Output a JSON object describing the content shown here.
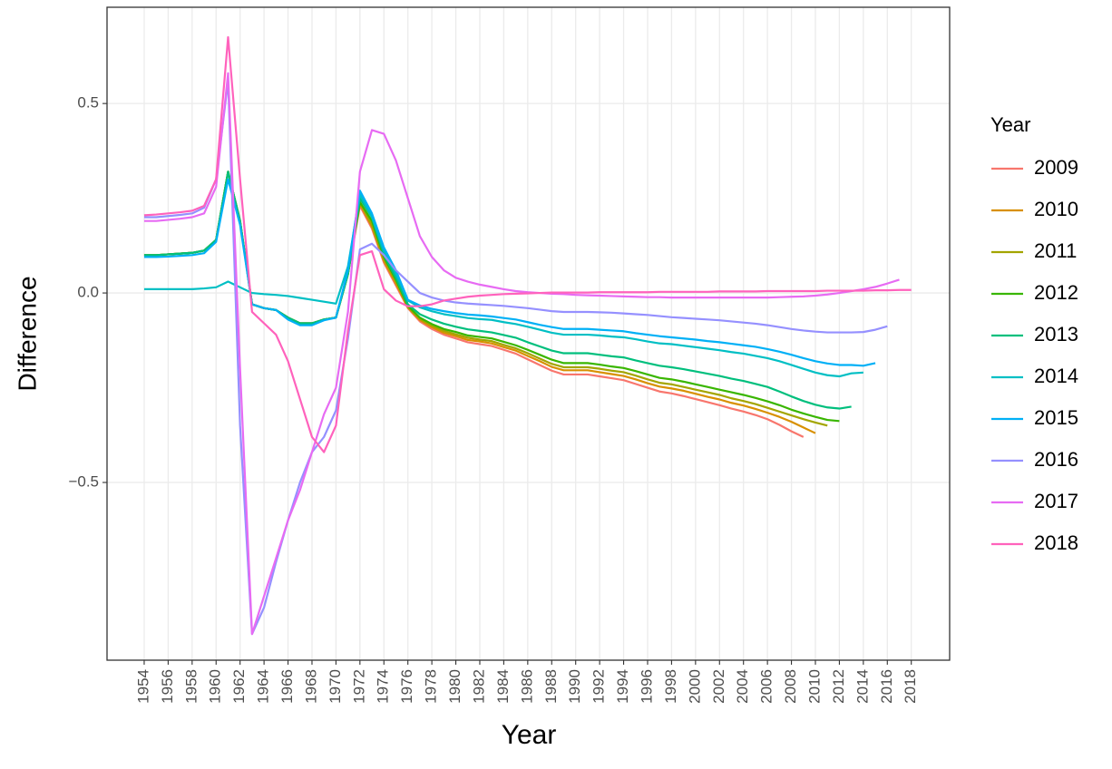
{
  "chart_data": {
    "type": "line",
    "x_label": "Year",
    "y_label": "Difference",
    "legend_title": "Year",
    "x": [
      1954,
      1955,
      1956,
      1957,
      1958,
      1959,
      1960,
      1961,
      1962,
      1963,
      1964,
      1965,
      1966,
      1967,
      1968,
      1969,
      1970,
      1971,
      1972,
      1973,
      1974,
      1975,
      1976,
      1977,
      1978,
      1979,
      1980,
      1981,
      1982,
      1983,
      1984,
      1985,
      1986,
      1987,
      1988,
      1989,
      1990,
      1991,
      1992,
      1993,
      1994,
      1995,
      1996,
      1997,
      1998,
      1999,
      2000,
      2001,
      2002,
      2003,
      2004,
      2005,
      2006,
      2007,
      2008,
      2009,
      2010,
      2011,
      2012,
      2013,
      2014,
      2015,
      2016,
      2017,
      2018
    ],
    "xlim": [
      1950.9,
      2021.2
    ],
    "xticks": [
      1954,
      1956,
      1958,
      1960,
      1962,
      1964,
      1966,
      1968,
      1970,
      1972,
      1974,
      1976,
      1978,
      1980,
      1982,
      1984,
      1986,
      1988,
      1990,
      1992,
      1994,
      1996,
      1998,
      2000,
      2002,
      2004,
      2006,
      2008,
      2010,
      2012,
      2014,
      2016,
      2018
    ],
    "ylim": [
      -0.969,
      0.754
    ],
    "yticks": [
      {
        "value": -0.5,
        "label": "−0.5"
      },
      {
        "value": 0,
        "label": "0.0"
      },
      {
        "value": 0.5,
        "label": "0.5"
      }
    ],
    "grid": true,
    "legend": "right",
    "series": [
      {
        "name": "2009",
        "color": "#F8766D",
        "values": [
          0.1,
          0.1,
          0.102,
          0.104,
          0.106,
          0.112,
          0.14,
          0.32,
          0.19,
          -0.03,
          -0.04,
          -0.045,
          -0.065,
          -0.08,
          -0.08,
          -0.07,
          -0.065,
          0.05,
          0.23,
          0.17,
          0.08,
          0.02,
          -0.04,
          -0.075,
          -0.095,
          -0.11,
          -0.12,
          -0.13,
          -0.135,
          -0.14,
          -0.15,
          -0.16,
          -0.175,
          -0.19,
          -0.205,
          -0.215,
          -0.215,
          -0.215,
          -0.22,
          -0.225,
          -0.23,
          -0.24,
          -0.25,
          -0.26,
          -0.265,
          -0.272,
          -0.28,
          -0.288,
          -0.296,
          -0.305,
          -0.313,
          -0.322,
          -0.333,
          -0.348,
          -0.365,
          -0.38,
          null,
          null,
          null,
          null,
          null,
          null,
          null,
          null,
          null
        ]
      },
      {
        "name": "2010",
        "color": "#D89000",
        "values": [
          0.1,
          0.1,
          0.102,
          0.104,
          0.106,
          0.112,
          0.14,
          0.32,
          0.19,
          -0.03,
          -0.04,
          -0.045,
          -0.065,
          -0.08,
          -0.08,
          -0.07,
          -0.065,
          0.05,
          0.235,
          0.175,
          0.085,
          0.025,
          -0.038,
          -0.071,
          -0.09,
          -0.105,
          -0.114,
          -0.124,
          -0.128,
          -0.133,
          -0.143,
          -0.152,
          -0.166,
          -0.18,
          -0.195,
          -0.204,
          -0.204,
          -0.204,
          -0.209,
          -0.214,
          -0.219,
          -0.228,
          -0.238,
          -0.247,
          -0.252,
          -0.258,
          -0.266,
          -0.274,
          -0.281,
          -0.29,
          -0.297,
          -0.306,
          -0.316,
          -0.327,
          -0.34,
          -0.355,
          -0.37,
          null,
          null,
          null,
          null,
          null,
          null,
          null,
          null
        ]
      },
      {
        "name": "2011",
        "color": "#A3A500",
        "values": [
          0.1,
          0.1,
          0.102,
          0.104,
          0.106,
          0.112,
          0.14,
          0.32,
          0.19,
          -0.03,
          -0.04,
          -0.045,
          -0.065,
          -0.08,
          -0.08,
          -0.07,
          -0.065,
          0.05,
          0.24,
          0.18,
          0.09,
          0.03,
          -0.036,
          -0.068,
          -0.086,
          -0.1,
          -0.109,
          -0.118,
          -0.123,
          -0.127,
          -0.137,
          -0.146,
          -0.159,
          -0.173,
          -0.187,
          -0.196,
          -0.196,
          -0.196,
          -0.2,
          -0.205,
          -0.209,
          -0.218,
          -0.228,
          -0.237,
          -0.241,
          -0.248,
          -0.255,
          -0.262,
          -0.269,
          -0.278,
          -0.285,
          -0.293,
          -0.303,
          -0.313,
          -0.323,
          -0.333,
          -0.342,
          -0.35,
          null,
          null,
          null,
          null,
          null,
          null,
          null
        ]
      },
      {
        "name": "2012",
        "color": "#39B600",
        "values": [
          0.1,
          0.1,
          0.102,
          0.104,
          0.106,
          0.112,
          0.14,
          0.32,
          0.19,
          -0.03,
          -0.04,
          -0.045,
          -0.065,
          -0.08,
          -0.08,
          -0.07,
          -0.065,
          0.05,
          0.24,
          0.19,
          0.095,
          0.035,
          -0.034,
          -0.065,
          -0.082,
          -0.095,
          -0.103,
          -0.112,
          -0.116,
          -0.12,
          -0.129,
          -0.138,
          -0.15,
          -0.163,
          -0.176,
          -0.185,
          -0.185,
          -0.185,
          -0.189,
          -0.194,
          -0.198,
          -0.206,
          -0.215,
          -0.224,
          -0.228,
          -0.234,
          -0.241,
          -0.248,
          -0.255,
          -0.262,
          -0.269,
          -0.277,
          -0.286,
          -0.296,
          -0.308,
          -0.318,
          -0.327,
          -0.335,
          -0.338,
          null,
          null,
          null,
          null,
          null,
          null
        ]
      },
      {
        "name": "2013",
        "color": "#00BF7D",
        "values": [
          0.1,
          0.1,
          0.102,
          0.104,
          0.106,
          0.112,
          0.14,
          0.32,
          0.19,
          -0.03,
          -0.04,
          -0.045,
          -0.065,
          -0.08,
          -0.08,
          -0.07,
          -0.065,
          0.05,
          0.25,
          0.2,
          0.1,
          0.04,
          -0.03,
          -0.056,
          -0.07,
          -0.081,
          -0.089,
          -0.096,
          -0.1,
          -0.104,
          -0.111,
          -0.118,
          -0.13,
          -0.141,
          -0.152,
          -0.159,
          -0.159,
          -0.159,
          -0.163,
          -0.167,
          -0.17,
          -0.178,
          -0.185,
          -0.192,
          -0.196,
          -0.201,
          -0.207,
          -0.213,
          -0.219,
          -0.226,
          -0.232,
          -0.24,
          -0.248,
          -0.26,
          -0.273,
          -0.285,
          -0.295,
          -0.302,
          -0.305,
          -0.3,
          null,
          null,
          null,
          null,
          null
        ]
      },
      {
        "name": "2014",
        "color": "#00BFC4",
        "values": [
          0.01,
          0.01,
          0.01,
          0.01,
          0.01,
          0.012,
          0.015,
          0.03,
          0.015,
          0,
          -0.003,
          -0.005,
          -0.008,
          -0.013,
          -0.018,
          -0.023,
          -0.028,
          0.07,
          0.26,
          0.2,
          0.11,
          0.05,
          -0.02,
          -0.038,
          -0.048,
          -0.056,
          -0.061,
          -0.066,
          -0.069,
          -0.071,
          -0.077,
          -0.082,
          -0.089,
          -0.097,
          -0.105,
          -0.11,
          -0.11,
          -0.11,
          -0.112,
          -0.115,
          -0.117,
          -0.122,
          -0.128,
          -0.133,
          -0.135,
          -0.139,
          -0.143,
          -0.147,
          -0.151,
          -0.156,
          -0.16,
          -0.166,
          -0.172,
          -0.18,
          -0.19,
          -0.2,
          -0.21,
          -0.217,
          -0.22,
          -0.212,
          -0.21,
          null,
          null,
          null,
          null
        ]
      },
      {
        "name": "2015",
        "color": "#00B0F6",
        "values": [
          0.095,
          0.095,
          0.096,
          0.098,
          0.1,
          0.105,
          0.135,
          0.3,
          0.18,
          -0.03,
          -0.04,
          -0.045,
          -0.07,
          -0.085,
          -0.085,
          -0.072,
          -0.065,
          0.06,
          0.27,
          0.21,
          0.12,
          0.06,
          -0.018,
          -0.033,
          -0.042,
          -0.048,
          -0.053,
          -0.057,
          -0.059,
          -0.062,
          -0.066,
          -0.07,
          -0.077,
          -0.084,
          -0.09,
          -0.095,
          -0.095,
          -0.095,
          -0.097,
          -0.099,
          -0.101,
          -0.106,
          -0.11,
          -0.114,
          -0.117,
          -0.12,
          -0.123,
          -0.127,
          -0.13,
          -0.134,
          -0.138,
          -0.142,
          -0.148,
          -0.155,
          -0.163,
          -0.172,
          -0.18,
          -0.186,
          -0.19,
          -0.19,
          -0.192,
          -0.185,
          null,
          null,
          null
        ]
      },
      {
        "name": "2016",
        "color": "#9590FF",
        "values": [
          0.2,
          0.2,
          0.203,
          0.206,
          0.21,
          0.225,
          0.3,
          0.56,
          -0.35,
          -0.9,
          -0.83,
          -0.71,
          -0.6,
          -0.5,
          -0.42,
          -0.38,
          -0.31,
          -0.12,
          0.115,
          0.13,
          0.1,
          0.06,
          0.03,
          0,
          -0.012,
          -0.02,
          -0.025,
          -0.028,
          -0.03,
          -0.032,
          -0.034,
          -0.037,
          -0.04,
          -0.044,
          -0.048,
          -0.05,
          -0.05,
          -0.05,
          -0.051,
          -0.052,
          -0.054,
          -0.056,
          -0.058,
          -0.061,
          -0.064,
          -0.066,
          -0.068,
          -0.07,
          -0.072,
          -0.075,
          -0.078,
          -0.081,
          -0.085,
          -0.09,
          -0.095,
          -0.099,
          -0.102,
          -0.104,
          -0.104,
          -0.104,
          -0.103,
          -0.097,
          -0.088,
          null,
          null
        ]
      },
      {
        "name": "2017",
        "color": "#E76BF3",
        "values": [
          0.19,
          0.19,
          0.193,
          0.196,
          0.2,
          0.21,
          0.28,
          0.58,
          -0.2,
          -0.9,
          -0.8,
          -0.7,
          -0.6,
          -0.52,
          -0.42,
          -0.32,
          -0.25,
          -0.05,
          0.32,
          0.43,
          0.42,
          0.35,
          0.25,
          0.15,
          0.095,
          0.06,
          0.04,
          0.03,
          0.022,
          0.016,
          0.01,
          0.005,
          0.002,
          0,
          -0.002,
          -0.003,
          -0.005,
          -0.006,
          -0.007,
          -0.008,
          -0.009,
          -0.01,
          -0.011,
          -0.011,
          -0.012,
          -0.012,
          -0.012,
          -0.012,
          -0.012,
          -0.012,
          -0.012,
          -0.012,
          -0.012,
          -0.011,
          -0.01,
          -0.009,
          -0.007,
          -0.004,
          0,
          0.005,
          0.01,
          0.016,
          0.025,
          0.035,
          null
        ]
      },
      {
        "name": "2018",
        "color": "#FF62BC",
        "values": [
          0.205,
          0.207,
          0.21,
          0.213,
          0.217,
          0.23,
          0.3,
          0.675,
          0.3,
          -0.05,
          -0.08,
          -0.11,
          -0.18,
          -0.28,
          -0.38,
          -0.42,
          -0.35,
          -0.1,
          0.1,
          0.11,
          0.01,
          -0.02,
          -0.035,
          -0.035,
          -0.03,
          -0.02,
          -0.015,
          -0.01,
          -0.007,
          -0.005,
          -0.003,
          -0.002,
          -0.001,
          0,
          0.001,
          0.001,
          0.001,
          0.001,
          0.002,
          0.002,
          0.002,
          0.002,
          0.002,
          0.003,
          0.003,
          0.003,
          0.003,
          0.003,
          0.004,
          0.004,
          0.004,
          0.004,
          0.005,
          0.005,
          0.005,
          0.005,
          0.005,
          0.006,
          0.006,
          0.006,
          0.006,
          0.007,
          0.007,
          0.008,
          0.008
        ]
      }
    ]
  }
}
